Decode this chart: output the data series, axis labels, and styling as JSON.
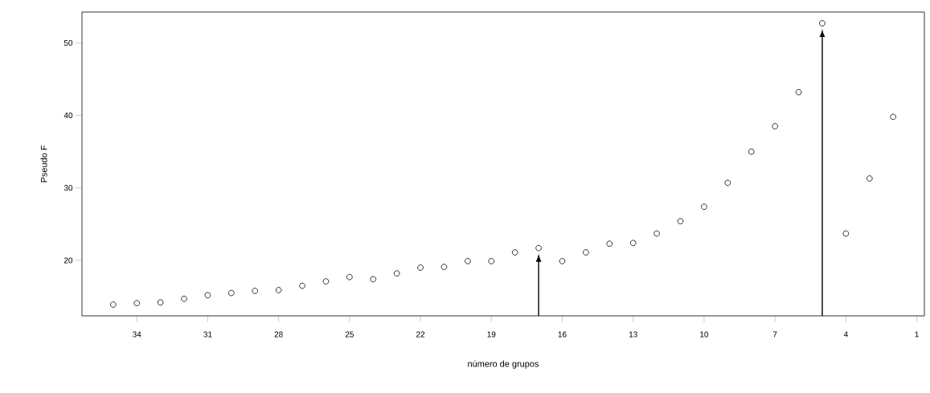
{
  "chart_data": {
    "type": "scatter",
    "xlabel": "número de grupos",
    "ylabel": "Pseudo F",
    "x": [
      35,
      34,
      33,
      32,
      31,
      30,
      29,
      28,
      27,
      26,
      25,
      24,
      23,
      22,
      21,
      20,
      19,
      18,
      17,
      16,
      15,
      14,
      13,
      12,
      11,
      10,
      9,
      8,
      7,
      6,
      5,
      4,
      3,
      2
    ],
    "series": [
      {
        "color": "#000000",
        "values": [
          13.9,
          14.1,
          14.2,
          14.7,
          15.2,
          15.5,
          15.8,
          15.9,
          16.5,
          17.1,
          17.7,
          17.4,
          18.2,
          19.0,
          19.1,
          19.9,
          19.9,
          21.1,
          21.7,
          19.9,
          21.1,
          22.3,
          22.4,
          23.7,
          25.4,
          27.4,
          30.7,
          35.0,
          38.5,
          43.2,
          52.7,
          23.7,
          31.3,
          39.8
        ]
      }
    ],
    "xlim": [
      36.32,
      0.68
    ],
    "ylim": [
      12.35,
      54.25
    ],
    "xticks": [
      34,
      31,
      28,
      25,
      22,
      19,
      16,
      13,
      10,
      7,
      4,
      1
    ],
    "yticks": [
      20,
      30,
      40,
      50
    ],
    "marker": "circle",
    "grid": false,
    "ref_lines": [
      {
        "axis": "x",
        "value": 17,
        "color": "#000000"
      },
      {
        "axis": "x",
        "value": 5,
        "color": "#000000"
      }
    ]
  }
}
